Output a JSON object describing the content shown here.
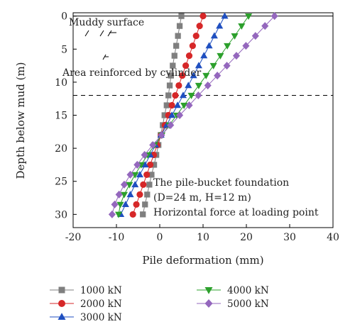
{
  "chart_data": {
    "type": "line",
    "xlabel": "Pile deformation (mm)",
    "ylabel": "Depth below mud (m)",
    "xlim": [
      -20,
      40
    ],
    "ylim": [
      0,
      32
    ],
    "y_inverted": true,
    "xticks": [
      -20,
      -10,
      0,
      10,
      20,
      30,
      40
    ],
    "yticks": [
      0,
      5,
      10,
      15,
      20,
      25,
      30
    ],
    "grid": false,
    "legend_placement": "below",
    "annotations": {
      "muddy_surface": "Muddy surface",
      "reinforced": "Area reinforced by cylinder",
      "foundation_line1": "The pile-bucket foundation",
      "foundation_line2": "(D=24 m, H=12 m)",
      "foundation_line3": "Horizontal force at loading point"
    },
    "reference_lines": [
      {
        "kind": "solid",
        "depth": 0
      },
      {
        "kind": "dashed",
        "depth": 12
      }
    ],
    "series": [
      {
        "name": "1000 kN",
        "marker": "square",
        "color": "#7f7f7f",
        "depth": [
          0,
          1.5,
          3,
          4.5,
          6,
          7.5,
          9,
          10.5,
          12,
          13.5,
          15,
          16.5,
          18,
          19.5,
          21,
          22.5,
          24,
          25.5,
          27,
          28.5,
          30
        ],
        "deformation": [
          5.0,
          4.6,
          4.2,
          3.8,
          3.4,
          3.0,
          2.6,
          2.3,
          2.0,
          1.6,
          1.1,
          0.7,
          0.2,
          -0.3,
          -0.8,
          -1.3,
          -1.9,
          -2.4,
          -2.9,
          -3.4,
          -3.9
        ]
      },
      {
        "name": "2000 kN",
        "marker": "circle",
        "color": "#d62728",
        "depth": [
          0,
          1.5,
          3,
          4.5,
          6,
          7.5,
          9,
          10.5,
          12,
          13.5,
          15,
          16.5,
          18,
          19.5,
          21,
          22.5,
          24,
          25.5,
          27,
          28.5,
          30
        ],
        "deformation": [
          10.0,
          9.2,
          8.4,
          7.6,
          6.8,
          6.0,
          5.2,
          4.4,
          3.6,
          2.8,
          2.0,
          1.2,
          0.3,
          -0.6,
          -1.4,
          -2.2,
          -3.0,
          -3.8,
          -4.6,
          -5.4,
          -6.2
        ]
      },
      {
        "name": "3000 kN",
        "marker": "triangle-up",
        "color": "#1f4fc0",
        "depth": [
          0,
          1.5,
          3,
          4.5,
          6,
          7.5,
          9,
          10.5,
          12,
          13.5,
          15,
          16.5,
          18,
          19.5,
          21,
          22.5,
          24,
          25.5,
          27,
          28.5,
          30
        ],
        "deformation": [
          15.0,
          13.8,
          12.6,
          11.4,
          10.2,
          9.0,
          7.8,
          6.6,
          5.4,
          4.1,
          2.8,
          1.6,
          0.3,
          -1.0,
          -2.2,
          -3.4,
          -4.6,
          -5.7,
          -6.8,
          -7.9,
          -9.0
        ]
      },
      {
        "name": "4000 kN",
        "marker": "triangle-down",
        "color": "#2ca02c",
        "depth": [
          0,
          1.5,
          3,
          4.5,
          6,
          7.5,
          9,
          10.5,
          12,
          13.5,
          15,
          16.5,
          18,
          19.5,
          21,
          22.5,
          24,
          25.5,
          27,
          28.5,
          30
        ],
        "deformation": [
          20.5,
          18.9,
          17.3,
          15.6,
          14.0,
          12.4,
          10.7,
          9.0,
          7.3,
          5.6,
          3.9,
          2.2,
          0.5,
          -1.2,
          -2.8,
          -4.3,
          -5.7,
          -7.0,
          -8.2,
          -9.1,
          -9.5
        ]
      },
      {
        "name": "5000 kN",
        "marker": "diamond",
        "color": "#9467bd",
        "depth": [
          0,
          1.5,
          3,
          4.5,
          6,
          7.5,
          9,
          10.5,
          12,
          13.5,
          15,
          16.5,
          18,
          19.5,
          21,
          22.5,
          24,
          25.5,
          27,
          28.5,
          30
        ],
        "deformation": [
          26.5,
          24.3,
          22.1,
          19.9,
          17.7,
          15.5,
          13.3,
          11.1,
          8.9,
          6.8,
          4.6,
          2.5,
          0.4,
          -1.6,
          -3.5,
          -5.2,
          -6.8,
          -8.2,
          -9.4,
          -10.4,
          -11.0
        ]
      }
    ]
  }
}
